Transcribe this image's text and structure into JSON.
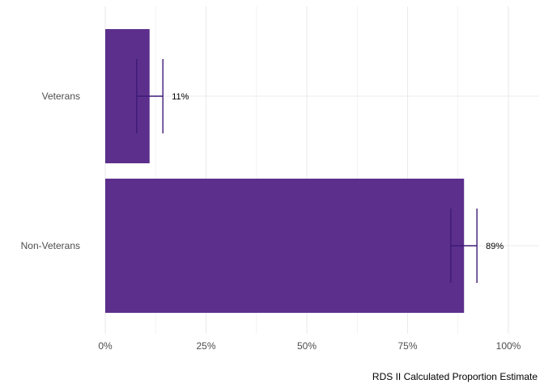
{
  "chart_data": {
    "type": "bar",
    "orientation": "horizontal",
    "categories": [
      "Veterans",
      "Non-Veterans"
    ],
    "values": [
      0.11,
      0.89
    ],
    "error_low": [
      0.078,
      0.857
    ],
    "error_high": [
      0.143,
      0.922
    ],
    "data_labels": [
      "11%",
      "89%"
    ],
    "xlim": [
      0,
      1.0
    ],
    "x_ticks": [
      0,
      0.25,
      0.5,
      0.75,
      1.0
    ],
    "x_tick_labels": [
      "0%",
      "25%",
      "50%",
      "75%",
      "100%"
    ],
    "xlabel": "RDS II Calculated Proportion Estimate",
    "ylabel": "",
    "title": "",
    "grid": true,
    "legend": "none",
    "colors": {
      "bar": "#5c2f8c",
      "error": "#3d1a78",
      "grid": "#ebebeb",
      "tick_text": "#4d4d4d",
      "label_text": "#000000"
    }
  }
}
